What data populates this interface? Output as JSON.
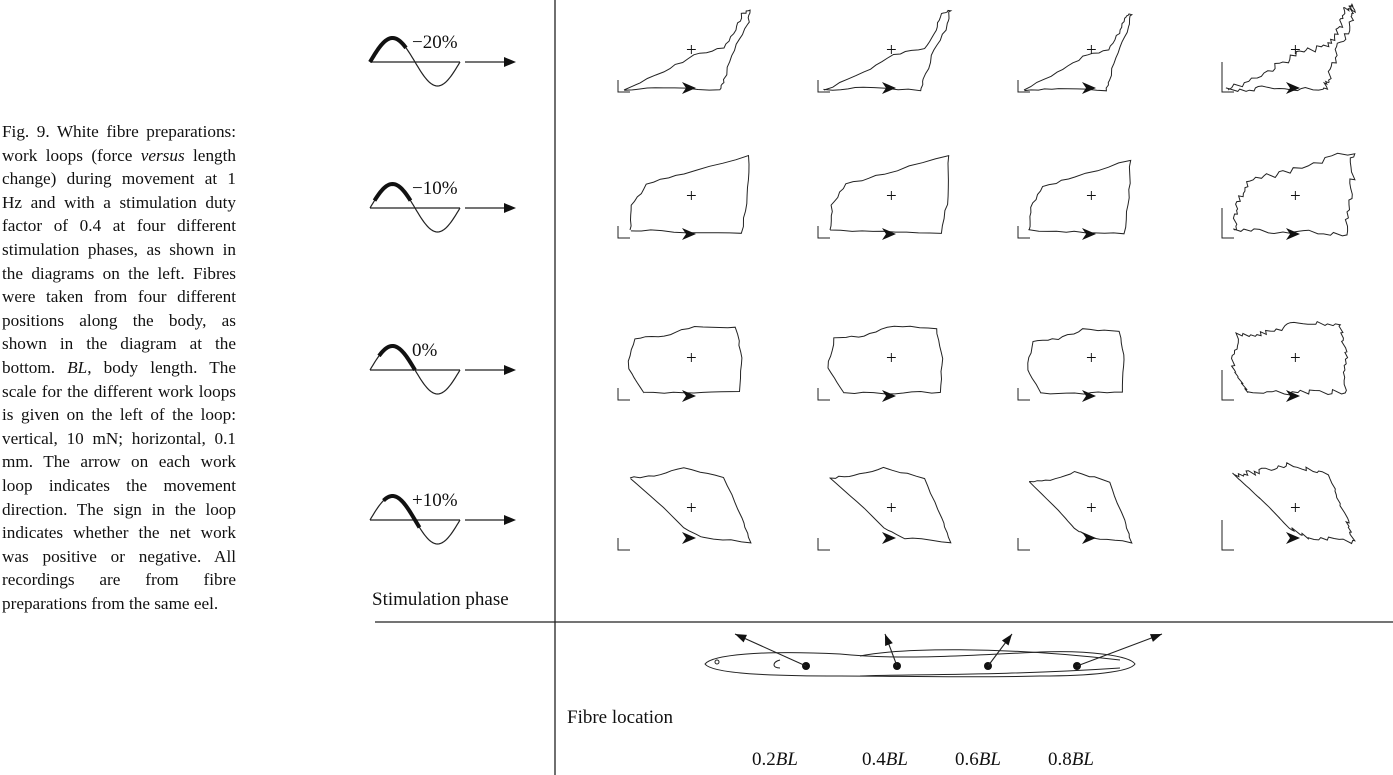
{
  "caption": [
    "Fig. 9. White fibre preparations: work loops (force ",
    "versus",
    " length change) during movement at 1 Hz and with a stimulation duty factor of 0.4 at four different stimulation phases, as shown in the diagrams on the left. Fibres were taken from four different positions along the body, as shown in the diagram at the bottom. ",
    "BL",
    ", body length. The scale for the different work loops is given on the left of the loop: vertical, 10 mN; horizontal, 0.1 mm. The arrow on each work loop indicates the movement direction. The sign in the loop indicates whether the net work was positive or negative. All recordings are from fibre preparations from the same eel."
  ],
  "phases": [
    "−20%",
    "−10%",
    "0%",
    "+10%"
  ],
  "phase_label": "Stimulation phase",
  "loop_sign": "+",
  "location_label": "Fibre location",
  "locations": [
    "0.2",
    "0.4",
    "0.6",
    "0.8"
  ],
  "location_unit": "BL"
}
